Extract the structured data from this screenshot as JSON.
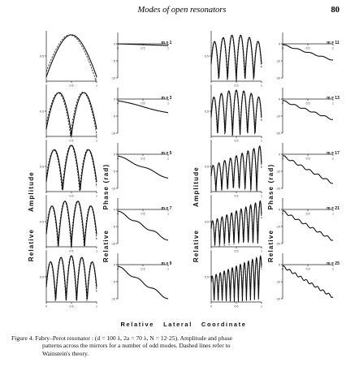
{
  "header": {
    "title": "Modes of open resonators",
    "page_number": "80"
  },
  "axis_labels": {
    "left_amplitude": [
      "Relative",
      "Amplitude"
    ],
    "left_phase": [
      "Relative",
      "Phase (rad)"
    ],
    "right_amplitude": [
      "Relative",
      "Amplitude"
    ],
    "right_phase": [
      "Relative",
      "Phase (rad)"
    ],
    "x": "Relative   Lateral   Coordinate"
  },
  "caption": {
    "line1": "Figure 4.   Fabry–Perot resonator :  (d = 100 λ, 2a = 70 λ, N = 12·25).   Amplitude and phase",
    "line2": "patterns across the mirrors for a number of odd modes.   Dashed lines refer to",
    "line3": "Wainstein's theory."
  },
  "chart_data": {
    "type": "line",
    "x_tick_labels": [
      "0",
      "0.5",
      "1"
    ],
    "amplitude_ytick": "0.5",
    "phase_yticks": [
      "0",
      "-5",
      "-10"
    ],
    "phase_yticks_right": [
      "0",
      "-10",
      "-20"
    ],
    "panels": [
      {
        "mode_label": "m = 1",
        "amplitude_lobes": 1,
        "phase_start": 0,
        "phase_end": -0.5
      },
      {
        "mode_label": "m = 3",
        "amplitude_lobes": 2,
        "phase_start": -0.5,
        "phase_end": -4
      },
      {
        "mode_label": "m = 5",
        "amplitude_lobes": 3,
        "phase_start": -0.5,
        "phase_end": -7
      },
      {
        "mode_label": "m = 7",
        "amplitude_lobes": 4,
        "phase_start": -0.5,
        "phase_end": -9
      },
      {
        "mode_label": "m = 9",
        "amplitude_lobes": 5,
        "phase_start": -0.5,
        "phase_end": -10
      },
      {
        "mode_label": "m = 11",
        "amplitude_lobes": 6,
        "phase_start": -0.5,
        "phase_end": -9.5
      },
      {
        "mode_label": "m = 13",
        "amplitude_lobes": 7,
        "phase_start": -1,
        "phase_end": -12
      },
      {
        "mode_label": "m = 17",
        "amplitude_lobes": 9,
        "phase_start": -1,
        "phase_end": -17
      },
      {
        "mode_label": "m = 21",
        "amplitude_lobes": 11,
        "phase_start": -1,
        "phase_end": -18
      },
      {
        "mode_label": "m = 25",
        "amplitude_lobes": 13,
        "phase_start": -1,
        "phase_end": -19
      }
    ]
  }
}
